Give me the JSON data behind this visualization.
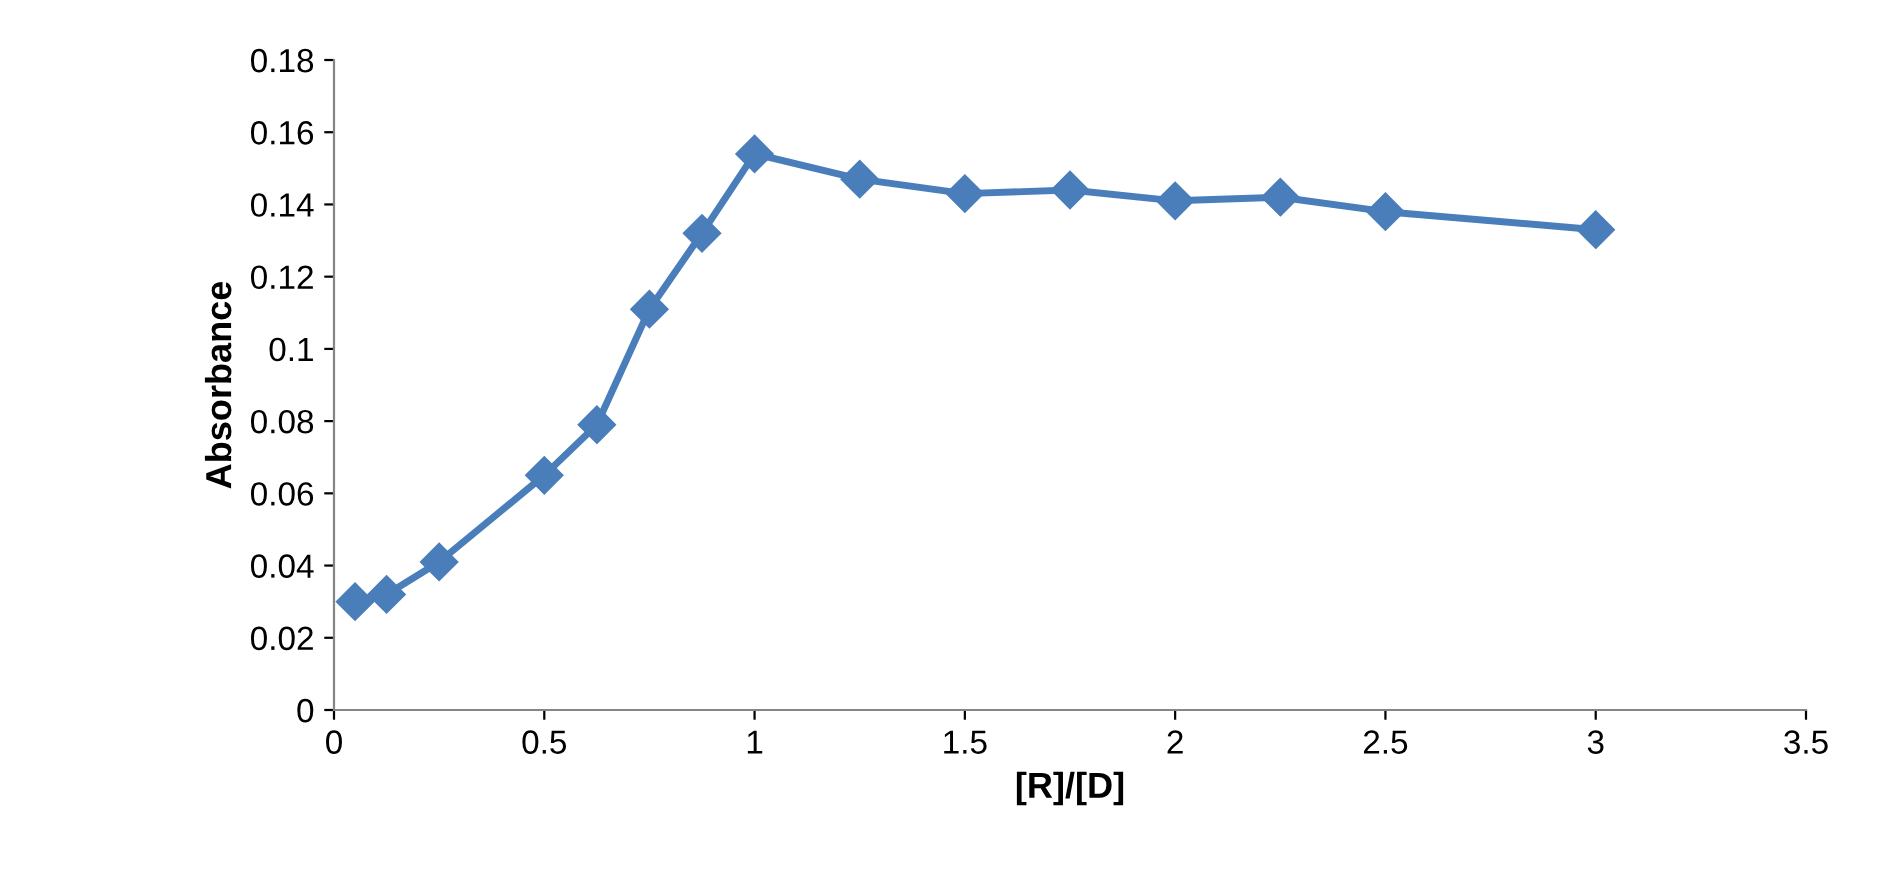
{
  "chart_data": {
    "type": "line",
    "xlabel": "[R]/[D]",
    "ylabel": "Absorbance",
    "series": [
      {
        "color": "#4a7ebb",
        "x": [
          0.05,
          0.125,
          0.25,
          0.5,
          0.625,
          0.75,
          0.875,
          1.0,
          1.25,
          1.5,
          1.75,
          2.0,
          2.25,
          2.5,
          3.0
        ],
        "values": [
          0.03,
          0.032,
          0.041,
          0.065,
          0.079,
          0.111,
          0.132,
          0.154,
          0.147,
          0.143,
          0.144,
          0.141,
          0.142,
          0.138,
          0.133
        ]
      }
    ],
    "xlim": [
      0,
      3.5
    ],
    "xticks": [
      0,
      0.5,
      1,
      1.5,
      2,
      2.5,
      3,
      3.5
    ],
    "ylim": [
      0,
      0.18
    ],
    "yticks": [
      0,
      0.02,
      0.04,
      0.06,
      0.08,
      0.1,
      0.12,
      0.14,
      0.16,
      0.18
    ],
    "grid": false,
    "legend": false,
    "marker": "diamond",
    "line_style": "solid"
  }
}
